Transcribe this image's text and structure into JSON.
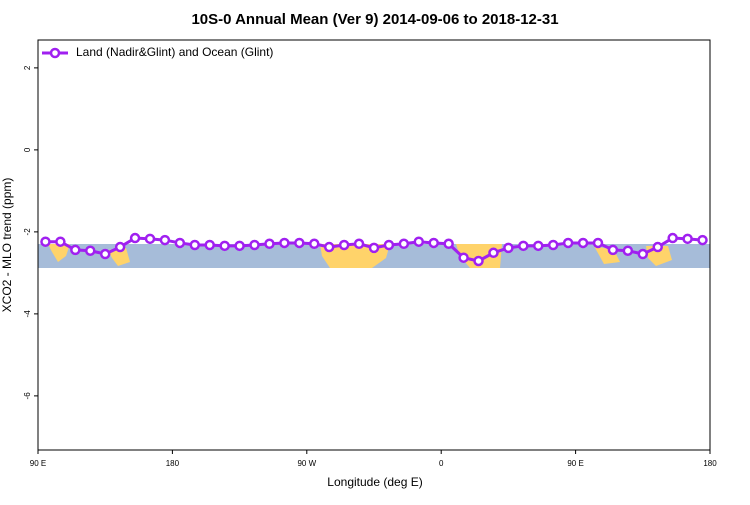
{
  "chart_data": {
    "type": "line",
    "title": "10S-0 Annual Mean (Ver 9)   2014-09-06 to 2018-12-31",
    "x_label": "Longitude (deg E)",
    "y_label": "XCO2 - MLO trend (ppm)",
    "x": [
      95,
      105,
      115,
      125,
      135,
      145,
      155,
      165,
      175,
      185,
      195,
      205,
      215,
      225,
      235,
      245,
      255,
      265,
      275,
      285,
      295,
      305,
      315,
      325,
      335,
      345,
      355,
      365,
      375,
      385,
      395,
      405,
      415,
      425,
      435,
      445,
      455,
      465,
      475,
      485,
      495,
      505,
      515,
      525,
      535
    ],
    "series": [
      {
        "name": "Land (Nadir&Glint) and Ocean (Glint)",
        "color": "#a020f0",
        "values": [
          -2.24,
          -2.24,
          -2.44,
          -2.46,
          -2.54,
          -2.37,
          -2.15,
          -2.17,
          -2.2,
          -2.27,
          -2.32,
          -2.32,
          -2.34,
          -2.34,
          -2.32,
          -2.29,
          -2.27,
          -2.27,
          -2.29,
          -2.37,
          -2.32,
          -2.29,
          -2.39,
          -2.32,
          -2.29,
          -2.24,
          -2.27,
          -2.29,
          -2.63,
          -2.71,
          -2.51,
          -2.39,
          -2.34,
          -2.34,
          -2.32,
          -2.27,
          -2.27,
          -2.27,
          -2.44,
          -2.46,
          -2.54,
          -2.37,
          -2.15,
          -2.17,
          -2.2
        ]
      }
    ],
    "xlim": [
      90,
      540
    ],
    "xticks": [
      {
        "value": 90,
        "label": "90 E"
      },
      {
        "value": 180,
        "label": "180"
      },
      {
        "value": 270,
        "label": "90 W"
      },
      {
        "value": 360,
        "label": "0"
      },
      {
        "value": 450,
        "label": "90 E"
      },
      {
        "value": 540,
        "label": "180"
      }
    ],
    "ylim": [
      -7.32,
      2.68
    ],
    "yticks": [
      2,
      0,
      -2,
      -4,
      -6
    ],
    "grid": false,
    "legend": "top-left"
  }
}
